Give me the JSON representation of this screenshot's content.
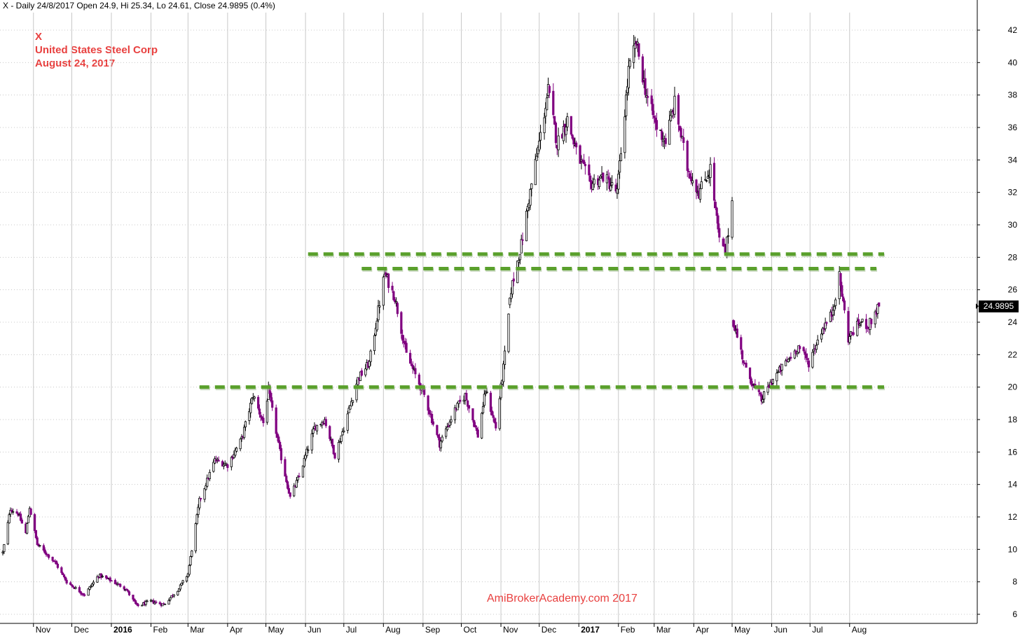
{
  "header": {
    "text": "X - Daily 24/8/2017 Open 24.9, Hi 25.34, Lo 24.61, Close 24.9895 (0.4%)"
  },
  "title_block": {
    "ticker": "X",
    "company": "United States Steel Corp",
    "date": "August 24, 2017"
  },
  "watermark": "AmiBrokerAcademy.com  2017",
  "last_price_label": "24.9895",
  "colors": {
    "up_candle": "#000000",
    "down_candle": "#800080",
    "support_line": "#5aa02c",
    "title_text": "#e8403f",
    "grid": "#c8c8c8"
  },
  "chart_data": {
    "type": "candlestick",
    "title": "",
    "xlabel": "",
    "ylabel": "",
    "ylim": [
      5.5,
      43.5
    ],
    "y_ticks": [
      6,
      8,
      10,
      12,
      14,
      16,
      18,
      20,
      22,
      24,
      26,
      28,
      30,
      32,
      34,
      36,
      38,
      40,
      42
    ],
    "x_range": [
      "2015-10-08",
      "2017-08-28"
    ],
    "x_ticks": [
      {
        "date": "2015-11-01",
        "label": "Nov",
        "bold": false
      },
      {
        "date": "2015-12-01",
        "label": "Dec",
        "bold": false
      },
      {
        "date": "2016-01-01",
        "label": "2016",
        "bold": true
      },
      {
        "date": "2016-02-01",
        "label": "Feb",
        "bold": false
      },
      {
        "date": "2016-03-01",
        "label": "Mar",
        "bold": false
      },
      {
        "date": "2016-04-01",
        "label": "Apr",
        "bold": false
      },
      {
        "date": "2016-05-01",
        "label": "May",
        "bold": false
      },
      {
        "date": "2016-06-01",
        "label": "Jun",
        "bold": false
      },
      {
        "date": "2016-07-01",
        "label": "Jul",
        "bold": false
      },
      {
        "date": "2016-08-01",
        "label": "Aug",
        "bold": false
      },
      {
        "date": "2016-09-01",
        "label": "Sep",
        "bold": false
      },
      {
        "date": "2016-10-01",
        "label": "Oct",
        "bold": false
      },
      {
        "date": "2016-11-01",
        "label": "Nov",
        "bold": false
      },
      {
        "date": "2016-12-01",
        "label": "Dec",
        "bold": false
      },
      {
        "date": "2017-01-01",
        "label": "2017",
        "bold": true
      },
      {
        "date": "2017-02-01",
        "label": "Feb",
        "bold": false
      },
      {
        "date": "2017-03-01",
        "label": "Mar",
        "bold": false
      },
      {
        "date": "2017-04-01",
        "label": "Apr",
        "bold": false
      },
      {
        "date": "2017-05-01",
        "label": "May",
        "bold": false
      },
      {
        "date": "2017-06-01",
        "label": "Jun",
        "bold": false
      },
      {
        "date": "2017-07-01",
        "label": "Jul",
        "bold": false
      },
      {
        "date": "2017-08-01",
        "label": "Aug",
        "bold": false
      }
    ],
    "price_path": [
      [
        "2015-10-08",
        9.8
      ],
      [
        "2015-10-14",
        12.5
      ],
      [
        "2015-10-20",
        12.2
      ],
      [
        "2015-10-26",
        11.0
      ],
      [
        "2015-10-29",
        12.6
      ],
      [
        "2015-11-04",
        10.3
      ],
      [
        "2015-11-18",
        9.2
      ],
      [
        "2015-11-27",
        8.0
      ],
      [
        "2015-12-11",
        7.2
      ],
      [
        "2015-12-22",
        8.4
      ],
      [
        "2015-12-31",
        8.1
      ],
      [
        "2016-01-12",
        7.6
      ],
      [
        "2016-01-21",
        6.5
      ],
      [
        "2016-02-01",
        6.8
      ],
      [
        "2016-02-11",
        6.6
      ],
      [
        "2016-02-23",
        7.6
      ],
      [
        "2016-03-01",
        8.5
      ],
      [
        "2016-03-10",
        13.0
      ],
      [
        "2016-03-22",
        15.5
      ],
      [
        "2016-04-01",
        15.2
      ],
      [
        "2016-04-12",
        16.8
      ],
      [
        "2016-04-21",
        19.5
      ],
      [
        "2016-04-29",
        17.8
      ],
      [
        "2016-05-03",
        19.8
      ],
      [
        "2016-05-12",
        16.0
      ],
      [
        "2016-05-20",
        13.2
      ],
      [
        "2016-05-27",
        14.5
      ],
      [
        "2016-06-08",
        17.5
      ],
      [
        "2016-06-16",
        18.0
      ],
      [
        "2016-06-24",
        15.8
      ],
      [
        "2016-07-01",
        17.5
      ],
      [
        "2016-07-12",
        20.5
      ],
      [
        "2016-07-21",
        21.5
      ],
      [
        "2016-07-29",
        25.2
      ],
      [
        "2016-08-02",
        27.0
      ],
      [
        "2016-08-10",
        25.5
      ],
      [
        "2016-08-19",
        22.0
      ],
      [
        "2016-09-02",
        19.5
      ],
      [
        "2016-09-14",
        16.5
      ],
      [
        "2016-09-26",
        18.6
      ],
      [
        "2016-10-04",
        19.5
      ],
      [
        "2016-10-14",
        17.0
      ],
      [
        "2016-10-20",
        19.8
      ],
      [
        "2016-10-28",
        17.5
      ],
      [
        "2016-11-03",
        21.2
      ],
      [
        "2016-11-09",
        26.0
      ],
      [
        "2016-11-17",
        28.8
      ],
      [
        "2016-11-25",
        32.5
      ],
      [
        "2016-12-02",
        35.5
      ],
      [
        "2016-12-08",
        38.3
      ],
      [
        "2016-12-15",
        35.0
      ],
      [
        "2016-12-23",
        36.5
      ],
      [
        "2016-12-30",
        34.5
      ],
      [
        "2017-01-10",
        32.5
      ],
      [
        "2017-01-20",
        33.0
      ],
      [
        "2017-01-31",
        32.0
      ],
      [
        "2017-02-09",
        39.5
      ],
      [
        "2017-02-15",
        41.2
      ],
      [
        "2017-02-23",
        38.0
      ],
      [
        "2017-03-03",
        36.0
      ],
      [
        "2017-03-10",
        35.2
      ],
      [
        "2017-03-17",
        37.5
      ],
      [
        "2017-03-27",
        33.5
      ],
      [
        "2017-04-05",
        32.0
      ],
      [
        "2017-04-14",
        33.5
      ],
      [
        "2017-04-21",
        29.0
      ],
      [
        "2017-04-26",
        28.3
      ],
      [
        "2017-05-01",
        31.5
      ],
      [
        "2017-05-02",
        24.0
      ],
      [
        "2017-05-12",
        21.0
      ],
      [
        "2017-05-24",
        19.2
      ],
      [
        "2017-06-02",
        20.5
      ],
      [
        "2017-06-12",
        21.5
      ],
      [
        "2017-06-22",
        22.5
      ],
      [
        "2017-06-30",
        21.5
      ],
      [
        "2017-07-10",
        23.5
      ],
      [
        "2017-07-18",
        24.5
      ],
      [
        "2017-07-24",
        26.8
      ],
      [
        "2017-07-31",
        23.0
      ],
      [
        "2017-08-09",
        24.0
      ],
      [
        "2017-08-16",
        23.8
      ],
      [
        "2017-08-24",
        25.0
      ]
    ],
    "gaps": [
      {
        "from": "2016-11-03",
        "to": "2016-11-08"
      },
      {
        "from": "2017-05-01",
        "to": "2017-05-02"
      }
    ],
    "support_lines": [
      {
        "y": 28.2,
        "x_start": "2016-06-03",
        "x_end": "2017-08-28"
      },
      {
        "y": 27.3,
        "x_start": "2016-07-15",
        "x_end": "2017-08-22"
      },
      {
        "y": 20.0,
        "x_start": "2016-03-10",
        "x_end": "2017-08-28"
      }
    ],
    "last_close": 24.9895
  }
}
